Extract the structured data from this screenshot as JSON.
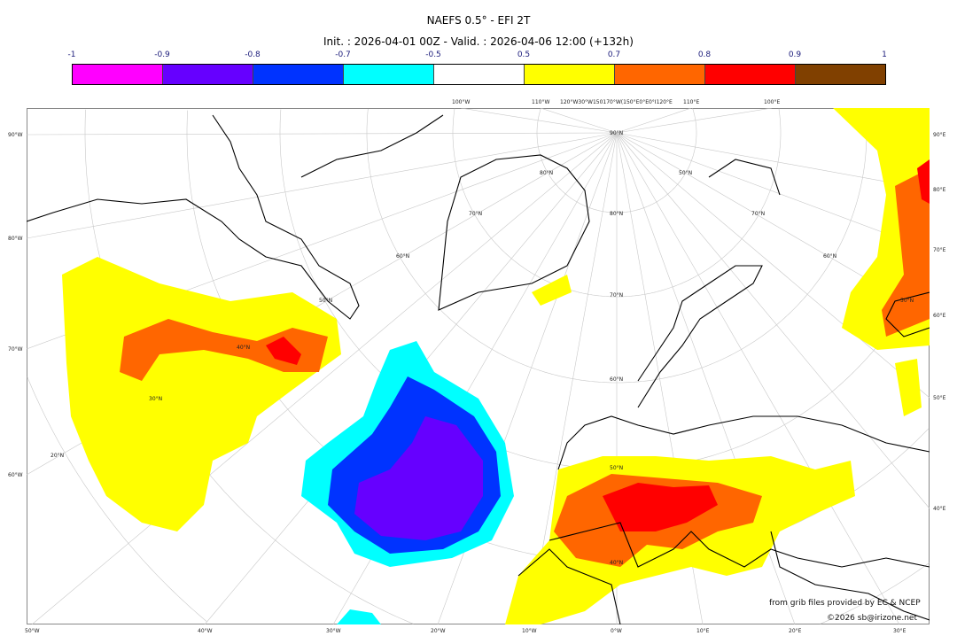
{
  "header": {
    "title": "NAEFS 0.5° - EFI 2T",
    "subtitle": "Init. : 2026-04-01 00Z - Valid. : 2026-04-06 12:00 (+132h)"
  },
  "colorbar": {
    "ticks": [
      "-1",
      "-0.9",
      "-0.8",
      "-0.7",
      "-0.5",
      "0.5",
      "0.7",
      "0.8",
      "0.9",
      "1"
    ],
    "colors": [
      "#ff00ff",
      "#6600ff",
      "#0033ff",
      "#00ffff",
      "#ffffff",
      "#ffff00",
      "#ff6600",
      "#ff0000",
      "#804000"
    ]
  },
  "axes": {
    "left": [
      "90°W",
      "80°W",
      "70°W",
      "60°W"
    ],
    "right": [
      "90°E",
      "80°E",
      "70°E",
      "60°E",
      "50°E",
      "40°E"
    ],
    "bottom": [
      "50°W",
      "40°W",
      "30°W",
      "20°W",
      "10°W",
      "0°W",
      "10°E",
      "20°E",
      "30°E"
    ],
    "top": [
      "100°W",
      "110°W",
      "120°W30°W150170°W(150°E0°E0°I120°E",
      "110°E",
      "100°E"
    ],
    "inner": [
      "90°N",
      "80°N",
      "80°N",
      "70°N",
      "70°N",
      "70°N",
      "60°N",
      "60°N",
      "60°N",
      "50°N",
      "50°N",
      "50°N",
      "50°N",
      "40°N",
      "40°N",
      "30°N",
      "20°N"
    ]
  },
  "credits": {
    "source": "from grib files provided by EC & NCEP",
    "copyright": "©2026 sb@irizone.net"
  }
}
